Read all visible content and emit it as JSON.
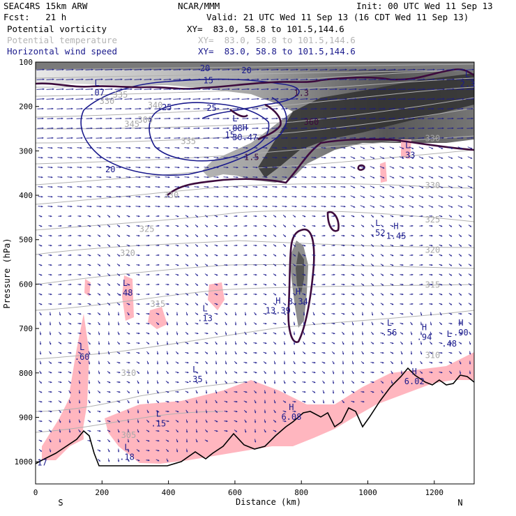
{
  "header": {
    "model": "SEAC4RS 15km ARW",
    "producer": "NCAR/MMM",
    "init": "Init: 00 UTC Wed 11 Sep 13",
    "fcst": "Fcst:   21 h",
    "valid": "Valid: 21 UTC Wed 11 Sep 13 (16 CDT Wed 11 Sep 13)"
  },
  "fields": [
    {
      "label": "Potential vorticity",
      "xy": "XY=  83.0, 58.8 to 101.5,144.6",
      "color": "#000000"
    },
    {
      "label": "Potential temperature",
      "xy": "XY=  83.0, 58.8 to 101.5,144.6",
      "color": "#b4b4b4"
    },
    {
      "label": "Horizontal wind speed",
      "xy": "XY=  83.0, 58.8 to 101.5,144.6",
      "color": "#1a1a8c"
    }
  ],
  "chart_data": {
    "type": "cross-section",
    "xlabel": "Distance (km)",
    "ylabel": "Pressure (hPa)",
    "xlim": [
      0,
      1320
    ],
    "ylim": [
      1050,
      100
    ],
    "x_ticks": [
      0,
      200,
      400,
      600,
      800,
      1000,
      1200
    ],
    "y_ticks": [
      100,
      200,
      300,
      400,
      500,
      600,
      700,
      800,
      900,
      1000
    ],
    "end_labels": {
      "left": "S",
      "right": "N"
    },
    "theta_labels": [
      {
        "text": "335",
        "x": 255,
        "y": 174
      },
      {
        "text": "330",
        "x": 215,
        "y": 188
      },
      {
        "text": "340",
        "x": 360,
        "y": 197
      },
      {
        "text": "345",
        "x": 290,
        "y": 240
      },
      {
        "text": "335",
        "x": 460,
        "y": 278
      },
      {
        "text": "330",
        "x": 408,
        "y": 400
      },
      {
        "text": "325",
        "x": 335,
        "y": 476
      },
      {
        "text": "320",
        "x": 277,
        "y": 530
      },
      {
        "text": "315",
        "x": 368,
        "y": 645
      },
      {
        "text": "310",
        "x": 280,
        "y": 800
      },
      {
        "text": "305",
        "x": 280,
        "y": 940
      },
      {
        "text": "300",
        "x": 330,
        "y": 230
      },
      {
        "text": "330",
        "x": 1195,
        "y": 272
      },
      {
        "text": "330",
        "x": 1195,
        "y": 378
      },
      {
        "text": "325",
        "x": 1195,
        "y": 455
      },
      {
        "text": "320",
        "x": 1195,
        "y": 523
      },
      {
        "text": "315",
        "x": 1195,
        "y": 602
      },
      {
        "text": "310",
        "x": 1195,
        "y": 760
      }
    ],
    "speed_labels": [
      {
        "text": "20",
        "x": 510,
        "y": 114
      },
      {
        "text": "15",
        "x": 520,
        "y": 142
      },
      {
        "text": "20",
        "x": 635,
        "y": 119
      },
      {
        "text": "25",
        "x": 395,
        "y": 202
      },
      {
        "text": "25",
        "x": 530,
        "y": 204
      },
      {
        "text": "15",
        "x": 585,
        "y": 264
      },
      {
        "text": "20",
        "x": 225,
        "y": 342
      }
    ],
    "pv_labels": [
      {
        "text": "1.5",
        "x": 650,
        "y": 314
      },
      {
        "text": "1.3",
        "x": 800,
        "y": 170
      },
      {
        "text": "360",
        "x": 830,
        "y": 235
      }
    ],
    "extrema": [
      {
        "kind": "L",
        "value": ".07",
        "x": 185,
        "y": 160
      },
      {
        "kind": "L",
        "value": "2.3",
        "x": 1300,
        "y": 140
      },
      {
        "kind": "L",
        "value": ".08",
        "x": 600,
        "y": 240
      },
      {
        "kind": "H",
        "value": "30.47",
        "x": 630,
        "y": 260
      },
      {
        "kind": "L",
        "value": ".33",
        "x": 1120,
        "y": 300
      },
      {
        "kind": "L",
        "value": ".52",
        "x": 1030,
        "y": 475
      },
      {
        "kind": "H",
        "value": "1.45",
        "x": 1085,
        "y": 482
      },
      {
        "kind": "L",
        "value": ".48",
        "x": 270,
        "y": 610
      },
      {
        "kind": "L",
        "value": ".13",
        "x": 510,
        "y": 668
      },
      {
        "kind": "H",
        "value": "13.39",
        "x": 730,
        "y": 650
      },
      {
        "kind": "H",
        "value": "3.34",
        "x": 790,
        "y": 630
      },
      {
        "kind": "L",
        "value": ".56",
        "x": 1065,
        "y": 700
      },
      {
        "kind": "H",
        "value": ".94",
        "x": 1170,
        "y": 710
      },
      {
        "kind": "H",
        "value": ".90",
        "x": 1280,
        "y": 700
      },
      {
        "kind": "L",
        "value": ".48",
        "x": 1245,
        "y": 725
      },
      {
        "kind": "L",
        "value": ".60",
        "x": 140,
        "y": 755
      },
      {
        "kind": "L",
        "value": ".35",
        "x": 480,
        "y": 805
      },
      {
        "kind": "H",
        "value": "6.02",
        "x": 1140,
        "y": 810
      },
      {
        "kind": "H",
        "value": "6.08",
        "x": 770,
        "y": 890
      },
      {
        "kind": "L",
        "value": ".15",
        "x": 370,
        "y": 905
      },
      {
        "kind": "L",
        "value": ".18",
        "x": 275,
        "y": 980
      },
      {
        "kind": "",
        "value": "17",
        "x": 20,
        "y": 993
      }
    ]
  }
}
